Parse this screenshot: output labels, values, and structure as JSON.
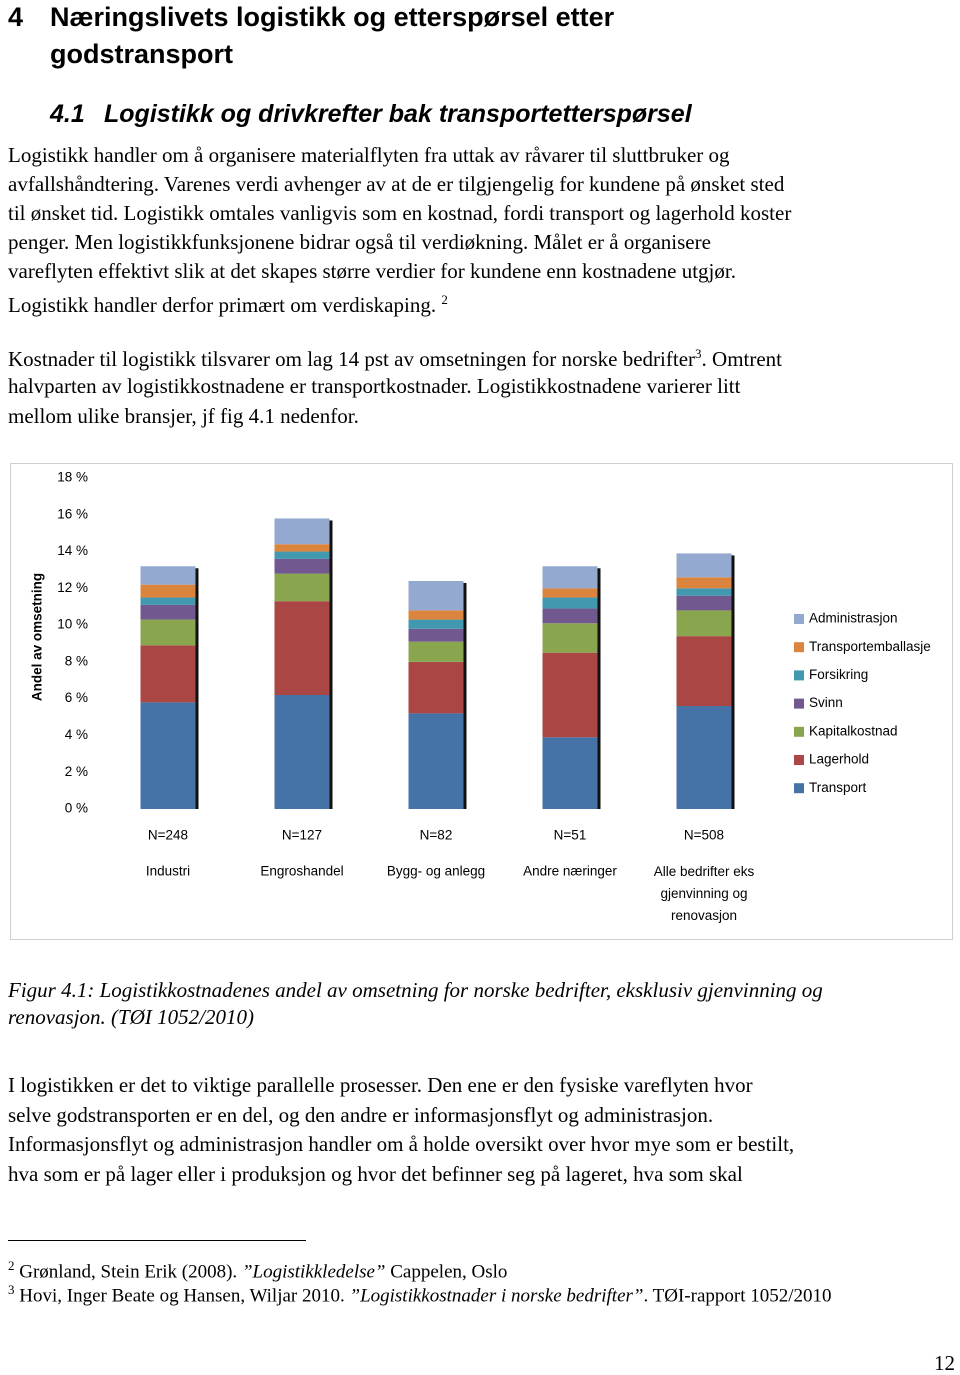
{
  "heading": {
    "number": "4",
    "lines": [
      "Næringslivets logistikk og etterspørsel etter",
      "godstransport"
    ]
  },
  "subheading": {
    "number": "4.1",
    "title": "Logistikk og drivkrefter bak transportetterspørsel"
  },
  "paragraph1": {
    "lines": [
      "Logistikk handler om å organisere materialflyten fra uttak av råvarer til sluttbruker og",
      "avfallshåndtering. Varenes verdi avhenger av at de er tilgjengelig for kundene på ønsket sted",
      "til ønsket tid. Logistikk omtales vanligvis som en kostnad, fordi transport og lagerhold koster",
      "penger. Men logistikkfunksjonene bidrar også til verdiøkning. Målet er å organisere",
      "vareflyten effektivt slik at det skapes større verdier for kundene enn kostnadene utgjør.",
      "Logistikk handler derfor primært om verdiskaping."
    ],
    "footnote_ref": "2"
  },
  "paragraph2": {
    "first_line_before": "Kostnader til logistikk tilsvarer om lag 14 pst av omsetningen for norske bedrifter",
    "footnote_ref": "3",
    "first_line_after": ". Omtrent",
    "lines": [
      "halvparten av logistikkostnadene er transportkostnader. Logistikkostnadene varierer litt",
      "mellom ulike bransjer, jf fig 4.1 nedenfor."
    ]
  },
  "chart_data": {
    "type": "stacked_bar",
    "y_label": "Andel av omsetning",
    "categories": [
      "Industri",
      "Engroshandel",
      "Bygg- og anlegg",
      "Andre næringer",
      "Alle bedrifter eks gjenvinning og renovasjon"
    ],
    "n_labels": [
      "N=248",
      "N=127",
      "N=82",
      "N=51",
      "N=508"
    ],
    "series": [
      {
        "name": "Transport",
        "color": "#4572a7",
        "values": [
          5.8,
          6.2,
          5.2,
          3.9,
          5.6
        ]
      },
      {
        "name": "Lagerhold",
        "color": "#aa4643",
        "values": [
          3.1,
          5.1,
          2.8,
          4.6,
          3.8
        ]
      },
      {
        "name": "Kapitalkostnad",
        "color": "#89a54e",
        "values": [
          1.4,
          1.5,
          1.1,
          1.6,
          1.4
        ]
      },
      {
        "name": "Svinn",
        "color": "#71588f",
        "values": [
          0.8,
          0.8,
          0.7,
          0.8,
          0.8
        ]
      },
      {
        "name": "Forsikring",
        "color": "#4198af",
        "values": [
          0.4,
          0.4,
          0.5,
          0.6,
          0.4
        ]
      },
      {
        "name": "Transportemballasje",
        "color": "#db843d",
        "values": [
          0.7,
          0.4,
          0.5,
          0.5,
          0.6
        ]
      },
      {
        "name": "Administrasjon",
        "color": "#93a9cf",
        "values": [
          1.0,
          1.4,
          1.6,
          1.2,
          1.3
        ]
      }
    ],
    "ylim": [
      0,
      18
    ],
    "yticks": [
      {
        "value": 0,
        "label": "0 %"
      },
      {
        "value": 2,
        "label": "2 %"
      },
      {
        "value": 4,
        "label": "4 %"
      },
      {
        "value": 6,
        "label": "6 %"
      },
      {
        "value": 8,
        "label": "8 %"
      },
      {
        "value": 10,
        "label": "10 %"
      },
      {
        "value": 12,
        "label": "12 %"
      },
      {
        "value": 14,
        "label": "14 %"
      },
      {
        "value": 16,
        "label": "16 %"
      },
      {
        "value": 18,
        "label": "18 %"
      }
    ],
    "grid": false,
    "legend": "right"
  },
  "caption": {
    "lines": [
      "Figur 4.1: Logistikkostnadenes andel av omsetning for norske bedrifter, eksklusiv gjenvinning og",
      "renovasjon. (TØI 1052/2010)"
    ]
  },
  "paragraph3": {
    "lines": [
      "I logistikken er det to viktige parallelle prosesser. Den ene er den fysiske vareflyten hvor",
      "selve godstransporten er en del, og den andre er informasjonsflyt og administrasjon.",
      "Informasjonsflyt og administrasjon handler om å holde oversikt over hvor mye som er bestilt,",
      "hva som er på lager eller i produksjon og hvor det befinner seg på lageret, hva som skal"
    ]
  },
  "footnotes": [
    {
      "number": "2",
      "before": "Grønland, Stein Erik (2008). ",
      "italic": "”Logistikkledelse”",
      "after": " Cappelen, Oslo"
    },
    {
      "number": "3",
      "before": "Hovi, Inger Beate og Hansen, Wiljar 2010. ",
      "italic": "”Logistikkostnader i norske bedrifter”",
      "after": ". TØI-rapport 1052/2010"
    }
  ],
  "page_number": "12"
}
